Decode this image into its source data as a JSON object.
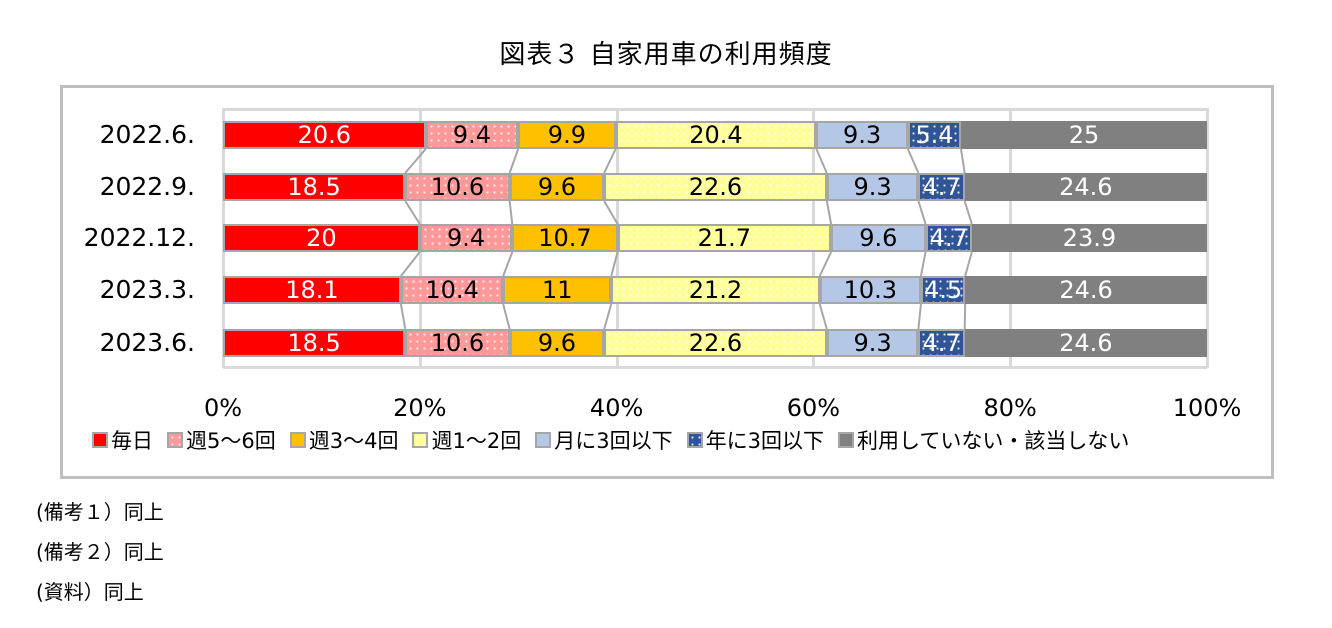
{
  "title": "図表３ 自家用車の利用頻度",
  "notes": [
    "(備考１）同上",
    "(備考２）同上",
    "(資料）同上"
  ],
  "chart_data": {
    "type": "bar",
    "orientation": "horizontal",
    "stacked": "percent",
    "title": "図表３ 自家用車の利用頻度",
    "categories": [
      "2022.6.",
      "2022.9.",
      "2022.12.",
      "2023.3.",
      "2023.6."
    ],
    "series": [
      {
        "name": "毎日",
        "color": "#ff0000",
        "text_color": "#ffffff",
        "pattern": "solid",
        "values": [
          20.6,
          18.5,
          20,
          18.1,
          18.5
        ]
      },
      {
        "name": "週5～6回",
        "color": "#ff9999",
        "text_color": "#000000",
        "pattern": "dots",
        "values": [
          9.4,
          10.6,
          9.4,
          10.4,
          10.6
        ]
      },
      {
        "name": "週3～4回",
        "color": "#ffc000",
        "text_color": "#000000",
        "pattern": "solid",
        "values": [
          9.9,
          9.6,
          10.7,
          11,
          9.6
        ]
      },
      {
        "name": "週1～2回",
        "color": "#ffff99",
        "text_color": "#000000",
        "pattern": "dots",
        "values": [
          20.4,
          22.6,
          21.7,
          21.2,
          22.6
        ]
      },
      {
        "name": "月に3回以下",
        "color": "#b4c7e7",
        "text_color": "#000000",
        "pattern": "solid",
        "values": [
          9.3,
          9.3,
          9.6,
          10.3,
          9.3
        ]
      },
      {
        "name": "年に3回以下",
        "color": "#2f5597",
        "text_color": "#ffffff",
        "pattern": "dots",
        "values": [
          5.4,
          4.7,
          4.7,
          4.5,
          4.7
        ]
      },
      {
        "name": "利用していない・該当しない",
        "color": "#808080",
        "text_color": "#ffffff",
        "pattern": "solid",
        "values": [
          25,
          24.6,
          23.9,
          24.6,
          24.6
        ]
      }
    ],
    "xlabel": "",
    "ylabel": "",
    "xlim": [
      0,
      100
    ],
    "x_ticks": [
      "0%",
      "20%",
      "40%",
      "60%",
      "80%",
      "100%"
    ],
    "grid": true,
    "series_lines": true,
    "legend_position": "bottom"
  }
}
